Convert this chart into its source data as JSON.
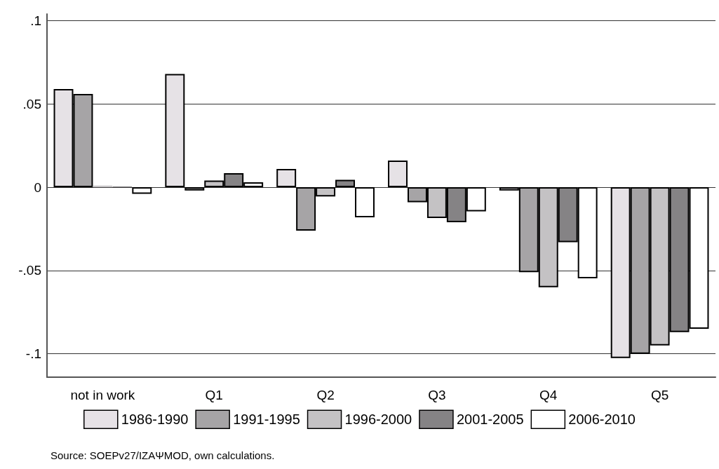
{
  "chart_data": {
    "type": "bar",
    "categories": [
      "not in work",
      "Q1",
      "Q2",
      "Q3",
      "Q4",
      "Q5"
    ],
    "series": [
      {
        "name": "1986-1990",
        "color": "#e6e2e6",
        "values": [
          0.059,
          0.068,
          0.011,
          0.016,
          -0.002,
          -0.1025
        ]
      },
      {
        "name": "1991-1995",
        "color": "#a6a4a6",
        "values": [
          0.056,
          -0.002,
          -0.026,
          -0.009,
          -0.051,
          -0.1
        ]
      },
      {
        "name": "1996-2000",
        "color": "#c4c2c4",
        "values": [
          0.001,
          0.004,
          -0.0055,
          -0.0185,
          -0.06,
          -0.095
        ]
      },
      {
        "name": "2001-2005",
        "color": "#858385",
        "values": [
          0.0005,
          0.0085,
          0.0045,
          -0.021,
          -0.033,
          -0.087
        ]
      },
      {
        "name": "2006-2010",
        "color": "#ffffff",
        "values": [
          -0.004,
          0.003,
          -0.018,
          -0.0145,
          -0.0547,
          -0.085
        ]
      }
    ],
    "ylim": [
      -0.114,
      0.104
    ],
    "yticks": [
      {
        "value": -0.1,
        "label": "-.1"
      },
      {
        "value": -0.05,
        "label": "-.05"
      },
      0,
      {
        "value": 0.05,
        "label": ".05"
      },
      {
        "value": 0.1,
        "label": ".1"
      }
    ],
    "grid": "y",
    "legend": "bottom",
    "annotations": [
      "Source: SOEPv27/IZAΨMOD, own calculations."
    ]
  }
}
